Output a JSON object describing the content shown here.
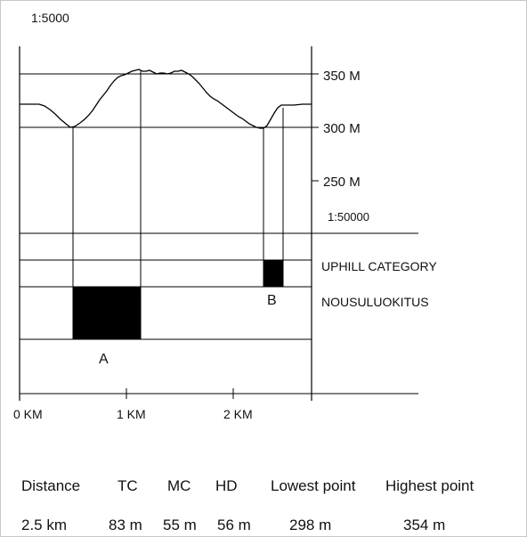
{
  "diagram": {
    "scale_top": "1:5000",
    "scale_mid": "1:50000",
    "elevation_labels": [
      "350 M",
      "300 M",
      "250 M"
    ],
    "category_en": "UPHILL CATEGORY",
    "category_fi": "NOUSULUOKITUS",
    "marker_a": "A",
    "marker_b": "B",
    "km_labels": [
      "0 KM",
      "1 KM",
      "2 KM"
    ]
  },
  "stats": {
    "headers": [
      "Distance",
      "TC",
      "MC",
      "HD",
      "Lowest point",
      "Highest point"
    ],
    "values": [
      "2.5 km",
      "83 m",
      "55 m",
      "56 m",
      "298 m",
      "354 m"
    ]
  }
}
